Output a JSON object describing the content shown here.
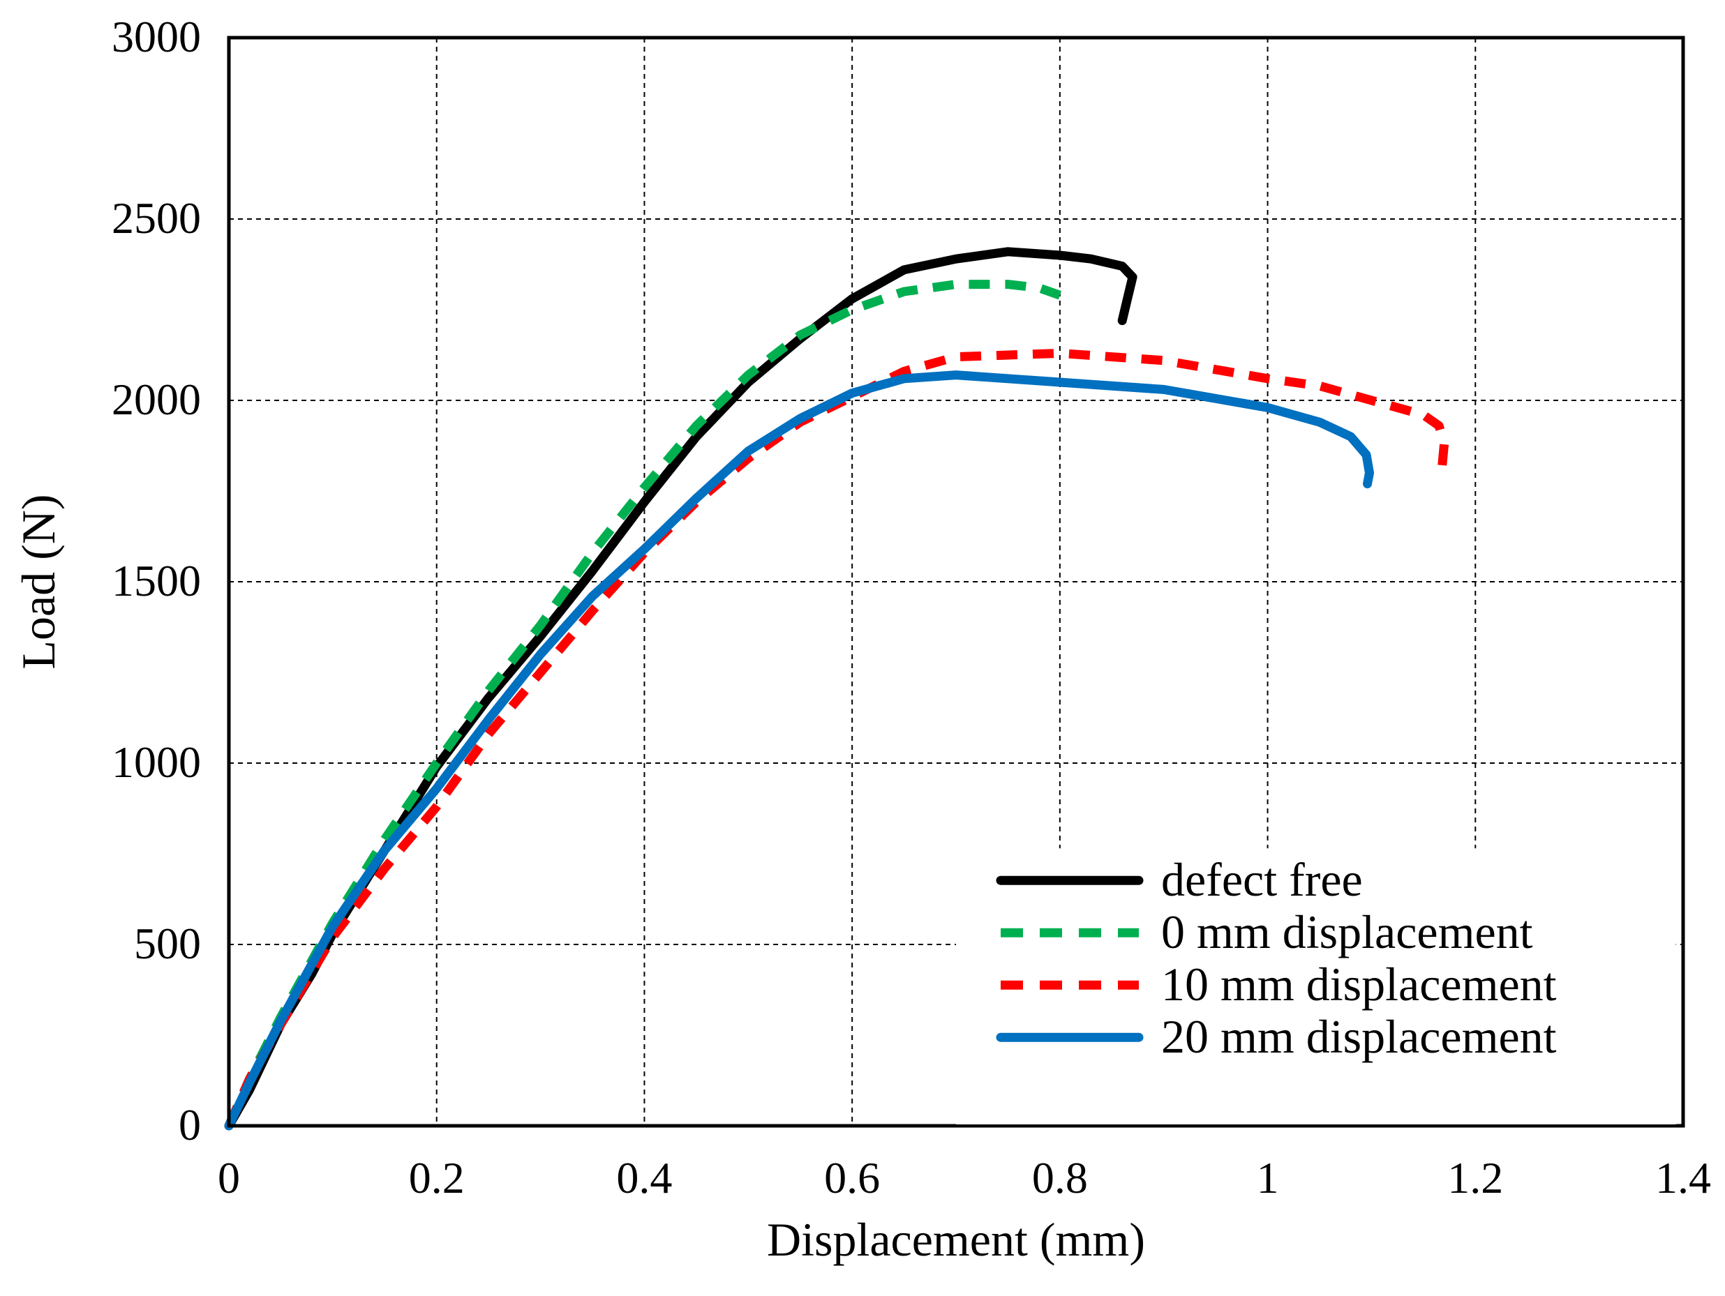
{
  "chart_data": {
    "type": "line",
    "title": "",
    "xlabel": "Displacement (mm)",
    "ylabel": "Load (N)",
    "xlim": [
      0,
      1.4
    ],
    "ylim": [
      0,
      3000
    ],
    "x_ticks": [
      "0",
      "0.2",
      "0.4",
      "0.6",
      "0.8",
      "1",
      "1.2",
      "1.4"
    ],
    "y_ticks": [
      "0",
      "500",
      "1000",
      "1500",
      "2000",
      "2500",
      "3000"
    ],
    "grid": true,
    "legend_position": "bottom-right",
    "series": [
      {
        "name": "defect free",
        "color": "#000000",
        "style": "solid",
        "x": [
          0,
          0.02,
          0.05,
          0.08,
          0.1,
          0.15,
          0.2,
          0.25,
          0.3,
          0.35,
          0.4,
          0.45,
          0.5,
          0.55,
          0.6,
          0.65,
          0.7,
          0.75,
          0.8,
          0.83,
          0.86,
          0.87,
          0.865,
          0.86
        ],
        "y": [
          0,
          100,
          280,
          420,
          530,
          760,
          990,
          1180,
          1350,
          1530,
          1720,
          1900,
          2050,
          2170,
          2280,
          2360,
          2390,
          2410,
          2400,
          2390,
          2370,
          2340,
          2280,
          2220
        ]
      },
      {
        "name": "0 mm displacement",
        "color": "#00b050",
        "style": "dashed",
        "x": [
          0,
          0.02,
          0.05,
          0.1,
          0.15,
          0.2,
          0.25,
          0.3,
          0.35,
          0.4,
          0.45,
          0.5,
          0.55,
          0.6,
          0.65,
          0.7,
          0.75,
          0.78,
          0.8
        ],
        "y": [
          0,
          130,
          300,
          560,
          790,
          1000,
          1200,
          1380,
          1580,
          1760,
          1930,
          2070,
          2180,
          2250,
          2300,
          2320,
          2320,
          2310,
          2290
        ]
      },
      {
        "name": "10 mm displacement",
        "color": "#ff0000",
        "style": "dashed",
        "x": [
          0,
          0.02,
          0.05,
          0.1,
          0.15,
          0.2,
          0.25,
          0.3,
          0.35,
          0.4,
          0.45,
          0.5,
          0.55,
          0.6,
          0.65,
          0.7,
          0.8,
          0.9,
          1.0,
          1.05,
          1.1,
          1.15,
          1.165,
          1.17,
          1.168
        ],
        "y": [
          0,
          130,
          280,
          520,
          710,
          880,
          1080,
          1250,
          1420,
          1580,
          1720,
          1840,
          1940,
          2010,
          2080,
          2120,
          2130,
          2110,
          2060,
          2040,
          2000,
          1960,
          1930,
          1880,
          1820
        ]
      },
      {
        "name": "20 mm displacement",
        "color": "#0070c0",
        "style": "solid",
        "x": [
          0,
          0.02,
          0.05,
          0.1,
          0.15,
          0.2,
          0.25,
          0.3,
          0.35,
          0.4,
          0.45,
          0.5,
          0.55,
          0.6,
          0.65,
          0.7,
          0.75,
          0.8,
          0.9,
          1.0,
          1.05,
          1.08,
          1.095,
          1.098,
          1.096
        ],
        "y": [
          0,
          120,
          290,
          550,
          760,
          930,
          1120,
          1300,
          1460,
          1590,
          1730,
          1860,
          1950,
          2020,
          2060,
          2070,
          2060,
          2050,
          2030,
          1980,
          1940,
          1900,
          1850,
          1800,
          1770
        ]
      }
    ]
  }
}
